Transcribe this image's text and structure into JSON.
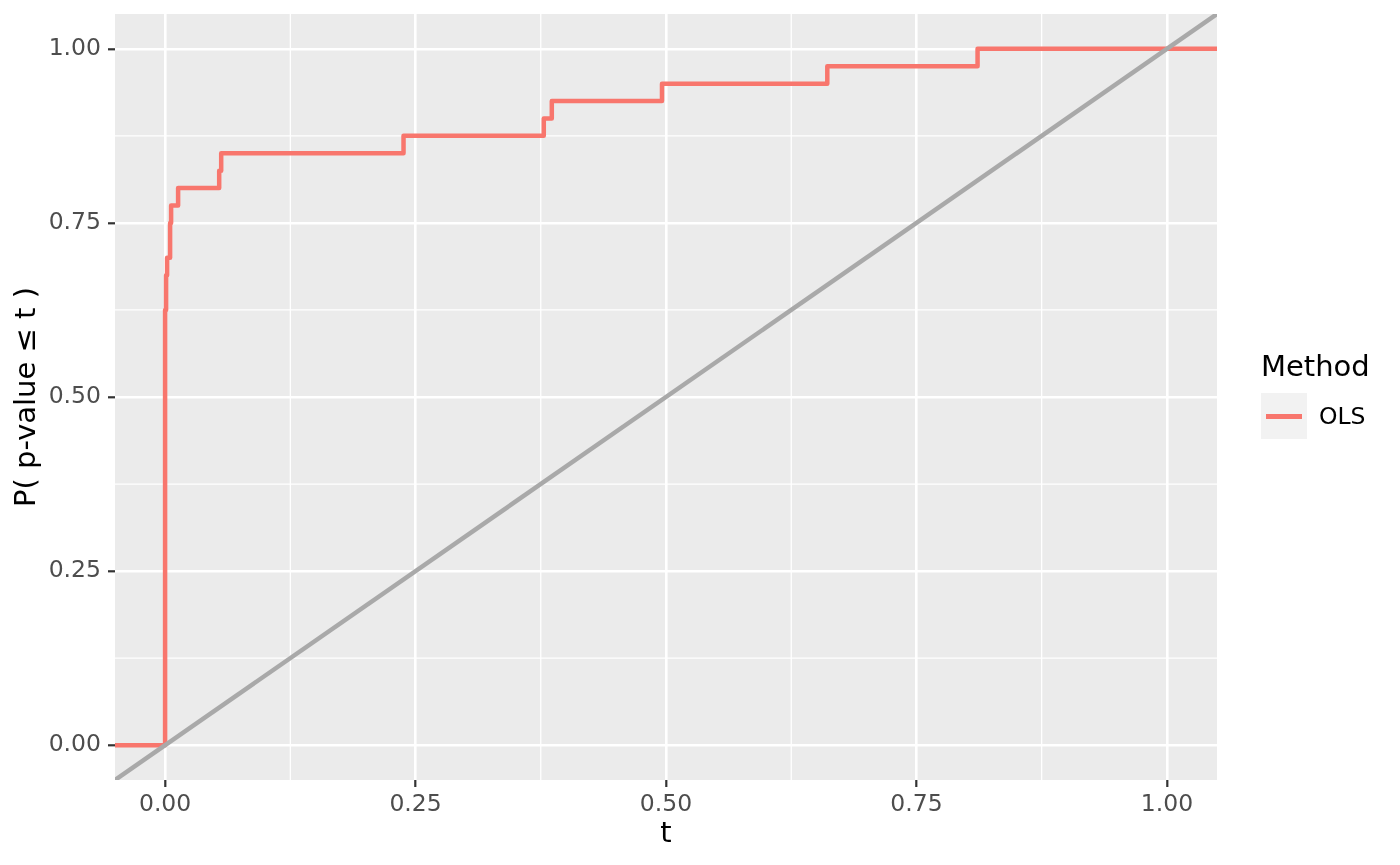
{
  "chart_data": {
    "type": "step",
    "xlabel": "t",
    "ylabel": "P( p-value ≤ t )",
    "legend_title": "Method",
    "legend": "right",
    "grid": true,
    "xlim": [
      -0.05,
      1.05
    ],
    "ylim": [
      -0.05,
      1.05
    ],
    "xticks": [
      {
        "value": 0,
        "label": "0.00"
      },
      0.25,
      {
        "value": 0.5,
        "label": "0.50"
      },
      0.75,
      {
        "value": 1,
        "label": "1.00"
      }
    ],
    "yticks": [
      {
        "value": 0,
        "label": "0.00"
      },
      0.25,
      {
        "value": 0.5,
        "label": "0.50"
      },
      0.75,
      {
        "value": 1,
        "label": "1.00"
      }
    ],
    "series": [
      {
        "name": "OLS",
        "color": "#f8766d",
        "x": [
          -0.05,
          0,
          0.001,
          0.002,
          0.005,
          0.006,
          0.013,
          0.054,
          0.056,
          0.238,
          0.378,
          0.386,
          0.496,
          0.661,
          0.811,
          1.05
        ],
        "values": [
          0,
          0.625,
          0.675,
          0.7,
          0.75,
          0.775,
          0.8,
          0.825,
          0.85,
          0.875,
          0.9,
          0.925,
          0.95,
          0.975,
          1,
          1
        ]
      },
      {
        "type": "line",
        "color": "#a9a9a9",
        "x": [
          -0.05,
          1.05
        ],
        "values": [
          -0.05,
          1.05
        ]
      }
    ]
  }
}
